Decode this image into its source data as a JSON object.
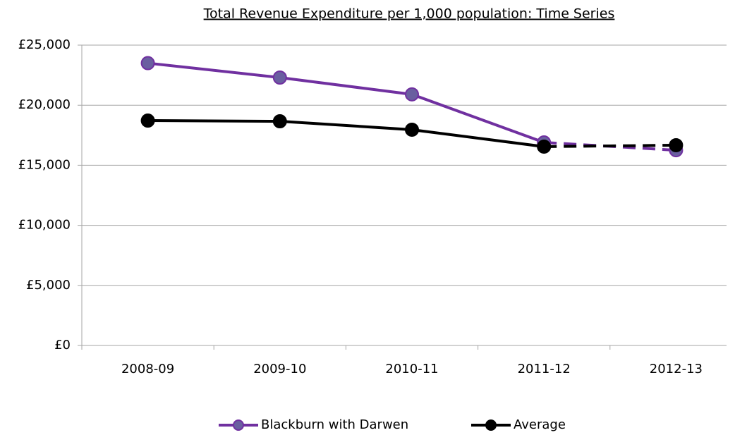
{
  "chart_data": {
    "type": "line",
    "title": "Total Revenue Expenditure per 1,000 population: Time Series",
    "categories": [
      "2008-09",
      "2009-10",
      "2010-11",
      "2011-12",
      "2012-13"
    ],
    "series": [
      {
        "name": "Blackburn with Darwen",
        "color": "#7030a0",
        "marker_fill": "#6a5fa0",
        "values": [
          23500,
          22300,
          20900,
          16900,
          16250
        ]
      },
      {
        "name": "Average",
        "color": "#000000",
        "marker_fill": "#000000",
        "values": [
          18720,
          18660,
          17960,
          16550,
          16670
        ]
      }
    ],
    "dashed_from_index": 3,
    "ylim": [
      0,
      25000
    ],
    "yticks": [
      {
        "value": 0,
        "label": "£0"
      },
      {
        "value": 5000,
        "label": "£5,000"
      },
      {
        "value": 10000,
        "label": "£10,000"
      },
      {
        "value": 15000,
        "label": "£15,000"
      },
      {
        "value": 20000,
        "label": "£20,000"
      },
      {
        "value": 25000,
        "label": "£25,000"
      }
    ],
    "grid": true,
    "legend": "bottom"
  }
}
